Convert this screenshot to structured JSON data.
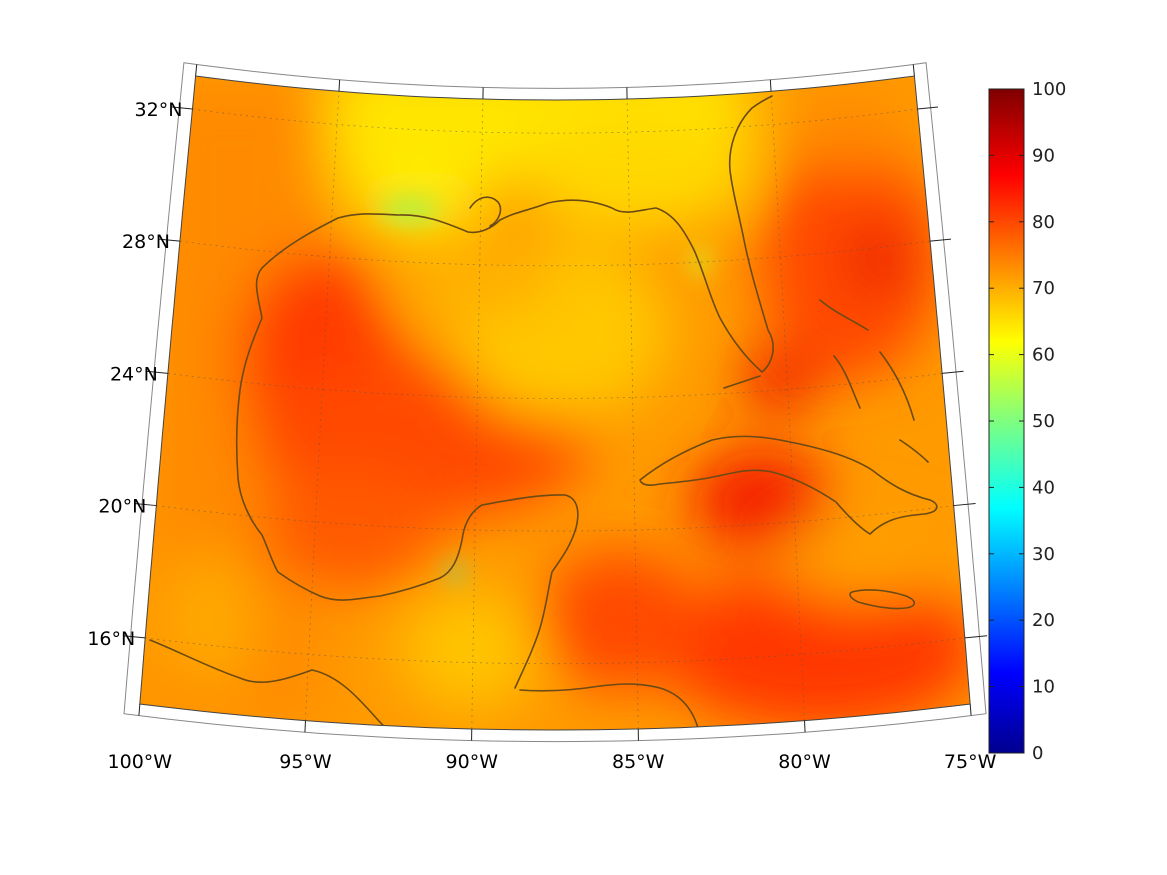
{
  "map": {
    "projection": "conic",
    "lon_range": [
      -100,
      -75
    ],
    "lat_range": [
      14,
      33
    ],
    "lon_ticks": [
      {
        "lon": -100,
        "label": "100°W"
      },
      {
        "lon": -95,
        "label": "95°W"
      },
      {
        "lon": -90,
        "label": "90°W"
      },
      {
        "lon": -85,
        "label": "85°W"
      },
      {
        "lon": -80,
        "label": "80°W"
      },
      {
        "lon": -75,
        "label": "75°W"
      }
    ],
    "lat_ticks": [
      {
        "lat": 16,
        "label": "16°N"
      },
      {
        "lat": 20,
        "label": "20°N"
      },
      {
        "lat": 24,
        "label": "24°N"
      },
      {
        "lat": 28,
        "label": "28°N"
      },
      {
        "lat": 32,
        "label": "32°N"
      }
    ],
    "grid": true,
    "coastline_color": "#6b4a16",
    "field_colormap": "jet"
  },
  "colorbar": {
    "min": 0,
    "max": 100,
    "ticks": [
      "0",
      "10",
      "20",
      "30",
      "40",
      "50",
      "60",
      "70",
      "80",
      "90",
      "100"
    ],
    "placement": "right"
  }
}
